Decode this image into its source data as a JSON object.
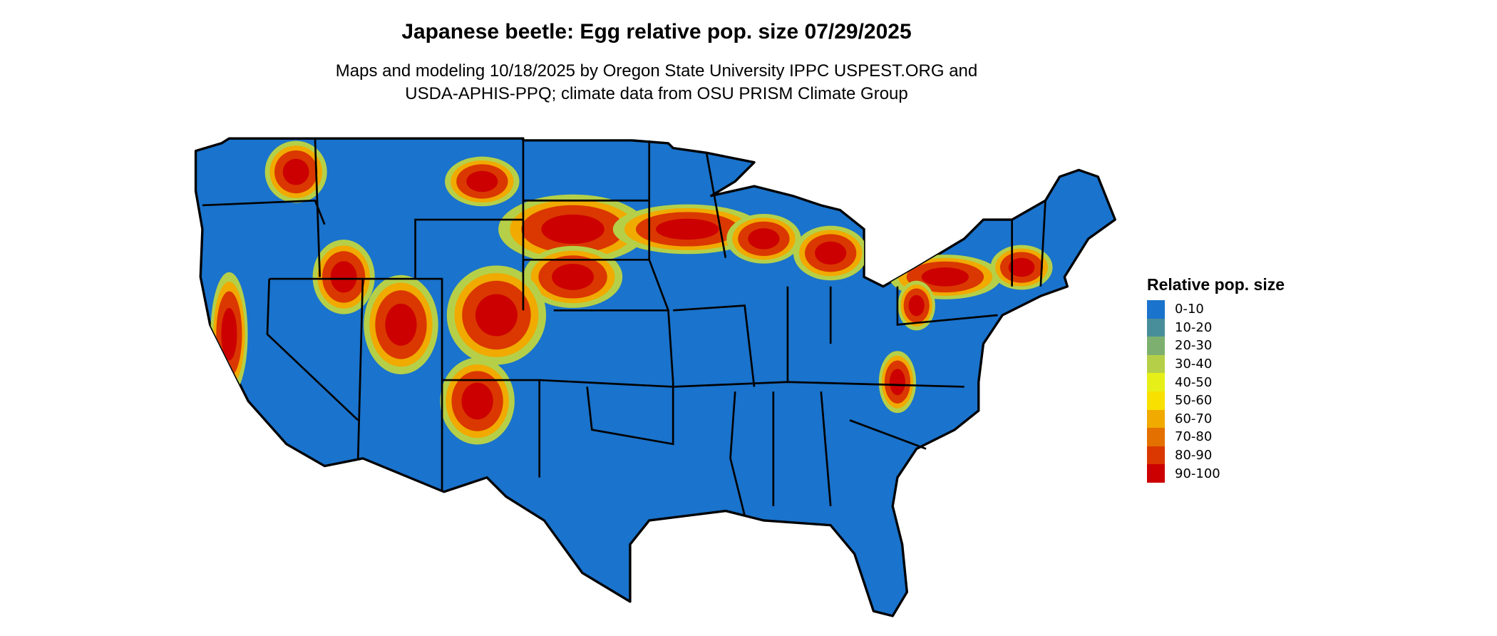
{
  "title": "Japanese beetle: Egg relative pop. size 07/29/2025",
  "subtitle_line1": "Maps and modeling 10/18/2025 by Oregon State University IPPC USPEST.ORG and",
  "subtitle_line2": "USDA-APHIS-PPQ; climate data from OSU PRISM Climate Group",
  "legend": {
    "title": "Relative pop. size",
    "items": [
      {
        "label": "0-10",
        "color": "#1a73cc"
      },
      {
        "label": "10-20",
        "color": "#488e9a"
      },
      {
        "label": "20-30",
        "color": "#7db070"
      },
      {
        "label": "30-40",
        "color": "#b5d048"
      },
      {
        "label": "40-50",
        "color": "#e6f018"
      },
      {
        "label": "50-60",
        "color": "#f8e000"
      },
      {
        "label": "60-70",
        "color": "#f0aa00"
      },
      {
        "label": "70-80",
        "color": "#e47000"
      },
      {
        "label": "80-90",
        "color": "#da3800"
      },
      {
        "label": "90-100",
        "color": "#cc0000"
      }
    ]
  },
  "map": {
    "region": "Contiguous United States",
    "base_color": "#1a73cc",
    "border_color": "#000000"
  }
}
